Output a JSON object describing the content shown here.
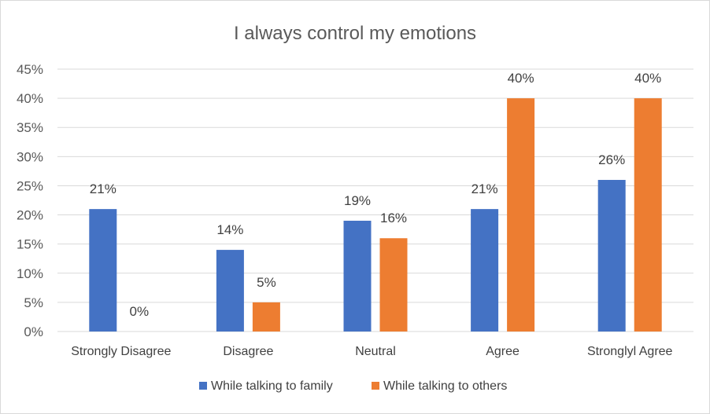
{
  "chart_data": {
    "type": "bar",
    "title": "I always control my emotions",
    "categories": [
      "Strongly Disagree",
      "Disagree",
      "Neutral",
      "Agree",
      "Stronglyl Agree"
    ],
    "series": [
      {
        "name": "While talking to family",
        "values": [
          21,
          14,
          19,
          21,
          26
        ],
        "labels": [
          "21%",
          "14%",
          "19%",
          "21%",
          "26%"
        ],
        "color": "#4472C4"
      },
      {
        "name": "While talking to others",
        "values": [
          0,
          5,
          16,
          40,
          40
        ],
        "labels": [
          "0%",
          "5%",
          "16%",
          "40%",
          "40%"
        ],
        "color": "#ED7D31"
      }
    ],
    "y_ticks": [
      "0%",
      "5%",
      "10%",
      "15%",
      "20%",
      "25%",
      "30%",
      "35%",
      "40%",
      "45%"
    ],
    "ylim": [
      0,
      45
    ],
    "grid": true,
    "legend_position": "bottom"
  }
}
